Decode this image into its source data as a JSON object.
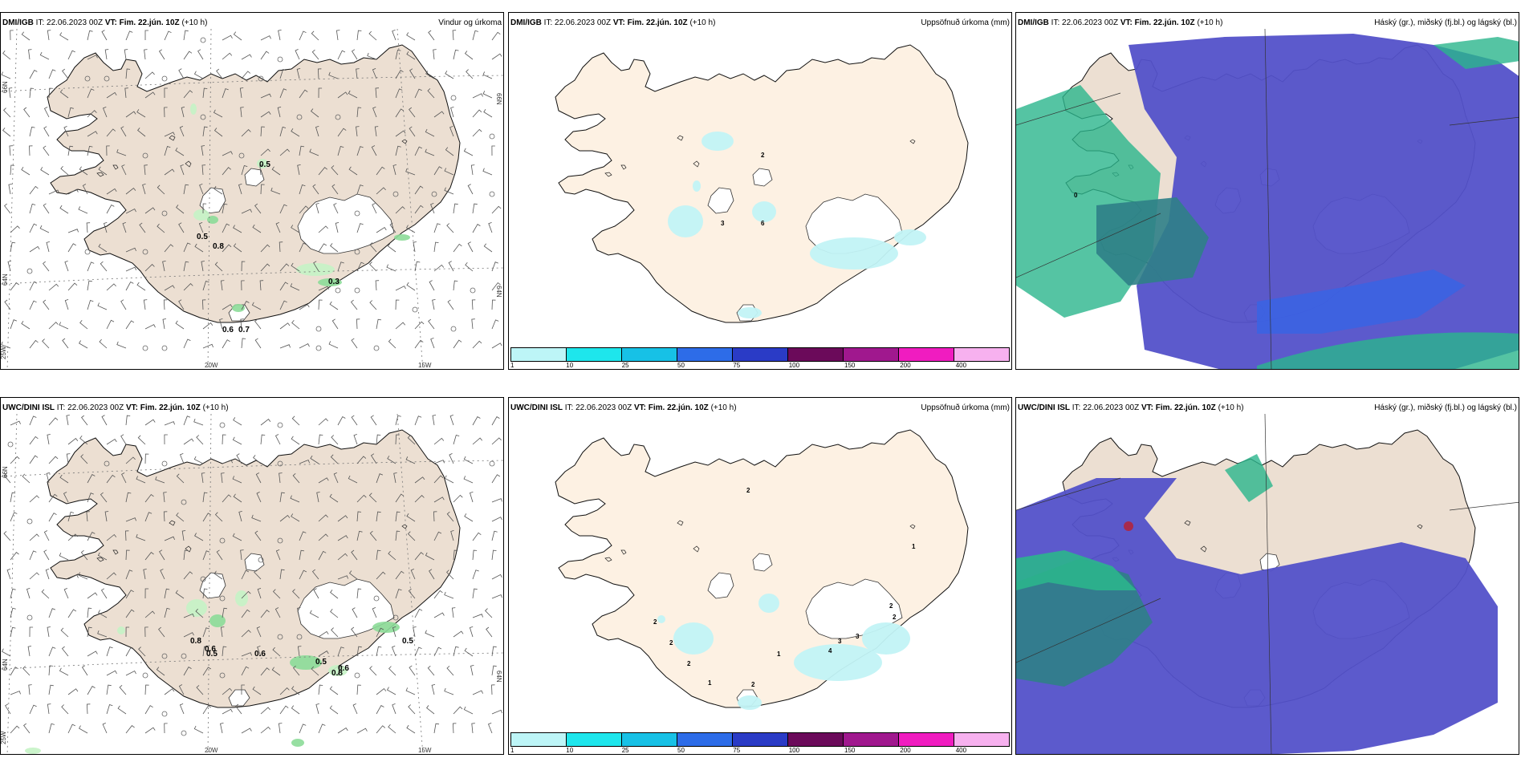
{
  "panels": [
    {
      "model": "DMI/IGB",
      "it": "IT: 22.06.2023 00Z",
      "vt_label": "VT:",
      "vt": "Fim. 22.jún. 10Z",
      "lead": "(+10 h)",
      "product": "Vindur og úrkoma",
      "precip_labels": [
        "0.5",
        "0.5",
        "0.8",
        "0.3",
        "0.6",
        "0.7"
      ],
      "grid_labels": [
        "20W",
        "15W",
        "66N",
        "64N",
        "66N",
        "64N",
        "25W"
      ]
    },
    {
      "model": "DMI/IGB",
      "it": "IT: 22.06.2023 00Z",
      "vt_label": "VT:",
      "vt": "Fim. 22.jún. 10Z",
      "lead": "(+10 h)",
      "product": "Uppsöfnuð úrkoma (mm)",
      "accum_labels": [
        "2",
        "3",
        "6"
      ]
    },
    {
      "model": "DMI/IGB",
      "it": "IT: 22.06.2023 00Z",
      "vt_label": "VT:",
      "vt": "Fim. 22.jún. 10Z",
      "lead": "(+10 h)",
      "product": "Háský (gr.), miðský (fj.bl.) og lágský (bl.)",
      "cloud_labels": [
        "0"
      ]
    },
    {
      "model": "UWC/DINI ISL",
      "it": "IT: 22.06.2023 00Z",
      "vt_label": "VT:",
      "vt": "Fim. 22.jún. 10Z",
      "lead": "(+10 h)",
      "product": "",
      "precip_labels": [
        "0.8",
        "0.6",
        "0.5",
        "0.6",
        "0.5",
        "0.6",
        "0.8",
        "0.5"
      ],
      "grid_labels": [
        "20W",
        "15W",
        "66N",
        "64N",
        "64N",
        "25W"
      ]
    },
    {
      "model": "UWC/DINI ISL",
      "it": "IT: 22.06.2023 00Z",
      "vt_label": "VT:",
      "vt": "Fim. 22.jún. 10Z",
      "lead": "(+10 h)",
      "product": "Uppsöfnuð úrkoma (mm)",
      "accum_labels": [
        "2",
        "2",
        "2",
        "2",
        "1",
        "2",
        "1",
        "4",
        "3",
        "3",
        "2",
        "1",
        "2"
      ]
    },
    {
      "model": "UWC/DINI ISL",
      "it": "IT: 22.06.2023 00Z",
      "vt_label": "VT:",
      "vt": "Fim. 22.jún. 10Z",
      "lead": "(+10 h)",
      "product": "Háský (gr.), miðský (fj.bl.) og lágský (bl.)",
      "cloud_labels": []
    }
  ],
  "legend": {
    "colors": [
      "#bdf5f7",
      "#1ee6ec",
      "#17c1e6",
      "#2d6ce8",
      "#2a3bc6",
      "#6b0a5a",
      "#a0188e",
      "#f01cc0",
      "#f7b1ef"
    ],
    "labels": [
      "1",
      "10",
      "25",
      "50",
      "75",
      "100",
      "150",
      "200",
      "400"
    ]
  },
  "colors": {
    "land": "#ecdfd2",
    "land_accum": "#fdf1e3",
    "glacier": "#ffffff",
    "precip_light": "#c5f3c5",
    "precip_med": "#8cdc98",
    "accum_light": "#c2f3f5",
    "cloud_low": "#5351c9",
    "cloud_mid": "#3b63e2",
    "cloud_high": "#2bb58c",
    "cloud_overlap": "#2f7f87"
  }
}
